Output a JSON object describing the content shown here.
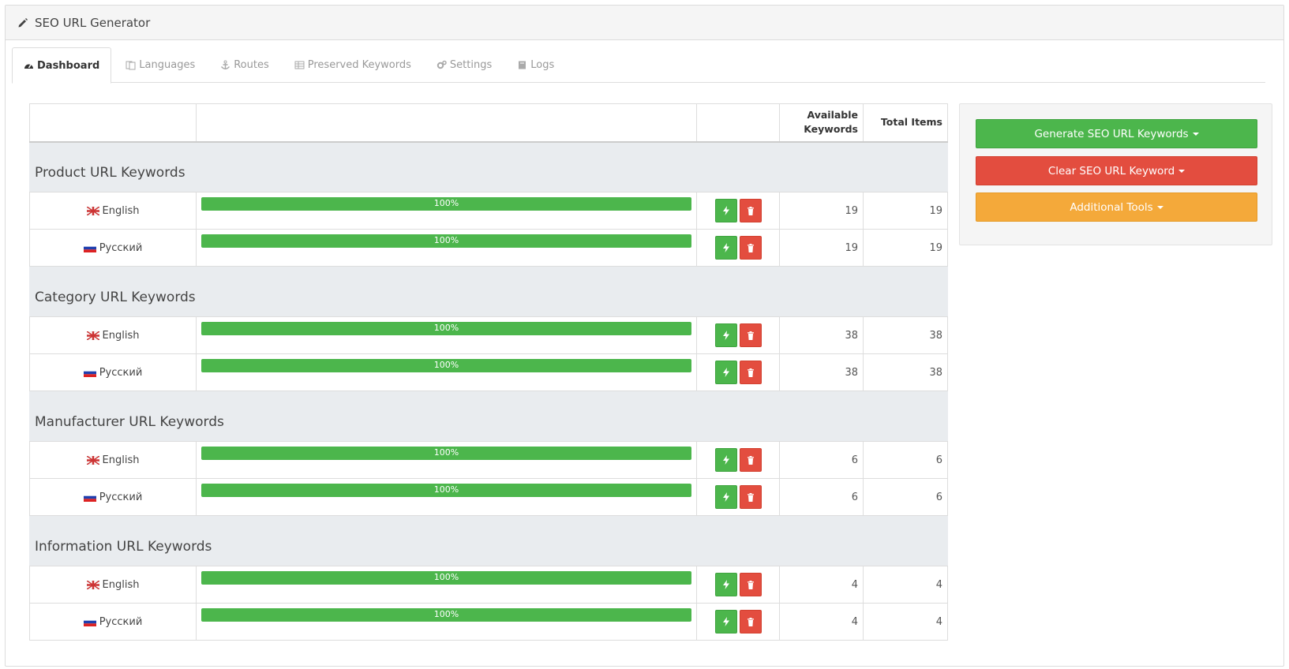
{
  "header": {
    "title": "SEO URL Generator"
  },
  "tabs": [
    {
      "label": "Dashboard",
      "icon": "dashboard-icon",
      "active": true
    },
    {
      "label": "Languages",
      "icon": "language-icon"
    },
    {
      "label": "Routes",
      "icon": "anchor-icon"
    },
    {
      "label": "Preserved Keywords",
      "icon": "table-icon"
    },
    {
      "label": "Settings",
      "icon": "gears-icon"
    },
    {
      "label": "Logs",
      "icon": "book-icon"
    }
  ],
  "table": {
    "headers": {
      "available": "Available Keywords",
      "total": "Total Items"
    },
    "groups": [
      {
        "title": "Product URL Keywords",
        "rows": [
          {
            "language": "English",
            "flag": "uk-flag",
            "progress": "100%",
            "available": "19",
            "total": "19"
          },
          {
            "language": "Русский",
            "flag": "ru-flag",
            "progress": "100%",
            "available": "19",
            "total": "19"
          }
        ]
      },
      {
        "title": "Category URL Keywords",
        "rows": [
          {
            "language": "English",
            "flag": "uk-flag",
            "progress": "100%",
            "available": "38",
            "total": "38"
          },
          {
            "language": "Русский",
            "flag": "ru-flag",
            "progress": "100%",
            "available": "38",
            "total": "38"
          }
        ]
      },
      {
        "title": "Manufacturer URL Keywords",
        "rows": [
          {
            "language": "English",
            "flag": "uk-flag",
            "progress": "100%",
            "available": "6",
            "total": "6"
          },
          {
            "language": "Русский",
            "flag": "ru-flag",
            "progress": "100%",
            "available": "6",
            "total": "6"
          }
        ]
      },
      {
        "title": "Information URL Keywords",
        "rows": [
          {
            "language": "English",
            "flag": "uk-flag",
            "progress": "100%",
            "available": "4",
            "total": "4"
          },
          {
            "language": "Русский",
            "flag": "ru-flag",
            "progress": "100%",
            "available": "4",
            "total": "4"
          }
        ]
      }
    ]
  },
  "sidebar": {
    "generate_label": "Generate SEO URL Keywords",
    "clear_label": "Clear SEO URL Keyword",
    "tools_label": "Additional Tools"
  },
  "colors": {
    "green": "#4cb64c",
    "red": "#e34d3f",
    "orange": "#f4a93a"
  }
}
